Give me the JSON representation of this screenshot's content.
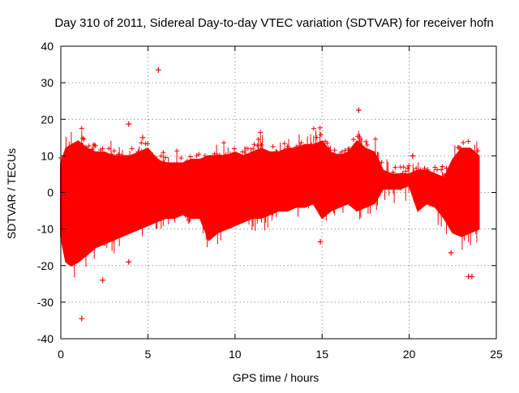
{
  "chart_data": {
    "type": "scatter",
    "title": "Day 310 of 2011, Sidereal Day-to-day VTEC variation (SDTVAR) for receiver hofn",
    "xlabel": "GPS time / hours",
    "ylabel": "SDTVAR / TECUs",
    "xlim": [
      0,
      25
    ],
    "ylim": [
      -40,
      40
    ],
    "xticks": [
      0,
      5,
      10,
      15,
      20,
      25
    ],
    "yticks": [
      -40,
      -30,
      -20,
      -10,
      0,
      10,
      20,
      30,
      40
    ],
    "grid": true,
    "marker": "+",
    "color": "#ff0000",
    "envelope": {
      "x": [
        0.0,
        0.3,
        0.6,
        1.0,
        1.5,
        2.0,
        2.5,
        3.0,
        3.5,
        4.0,
        4.5,
        5.0,
        5.5,
        6.0,
        6.5,
        7.0,
        7.5,
        8.0,
        8.5,
        9.0,
        9.5,
        10.0,
        10.5,
        11.0,
        11.5,
        12.0,
        12.5,
        13.0,
        13.5,
        14.0,
        14.5,
        15.0,
        15.5,
        16.0,
        16.5,
        17.0,
        17.5,
        18.0,
        18.5,
        19.0,
        19.5,
        20.0,
        20.5,
        21.0,
        21.5,
        22.0,
        22.5,
        23.0,
        23.5,
        24.0
      ],
      "upper": [
        8,
        12,
        13,
        14,
        12,
        11,
        11,
        10,
        10,
        10,
        11,
        12,
        9,
        8,
        8,
        8,
        9,
        9,
        10,
        10,
        10,
        11,
        10,
        11,
        12,
        11,
        11,
        12,
        12,
        13,
        13,
        14,
        11,
        10,
        11,
        14,
        12,
        11,
        6,
        5,
        5,
        5,
        6,
        6,
        5,
        4,
        9,
        12,
        12,
        10
      ],
      "lower": [
        -12,
        -19,
        -20,
        -19,
        -17,
        -15,
        -14,
        -13,
        -12,
        -11,
        -10,
        -9,
        -8,
        -7,
        -7,
        -6,
        -7,
        -7,
        -13,
        -11,
        -10,
        -9,
        -8,
        -7,
        -7,
        -6,
        -5,
        -5,
        -4,
        -4,
        -3,
        -7,
        -5,
        -4,
        -3,
        -5,
        -4,
        -3,
        1,
        1,
        1,
        2,
        -5,
        -3,
        -4,
        -7,
        -11,
        -12,
        -11,
        -10
      ]
    },
    "outliers": [
      {
        "x": 1.2,
        "y": -34.5
      },
      {
        "x": 2.4,
        "y": -24
      },
      {
        "x": 5.6,
        "y": 33.5
      },
      {
        "x": 3.9,
        "y": 18.7
      },
      {
        "x": 4.7,
        "y": 15
      },
      {
        "x": 3.9,
        "y": -19
      },
      {
        "x": 17.1,
        "y": 22.5
      },
      {
        "x": 14.9,
        "y": -13.5
      },
      {
        "x": 22.4,
        "y": -16.5
      },
      {
        "x": 23.4,
        "y": -23
      },
      {
        "x": 23.6,
        "y": -23
      },
      {
        "x": 20.2,
        "y": 10
      }
    ]
  }
}
